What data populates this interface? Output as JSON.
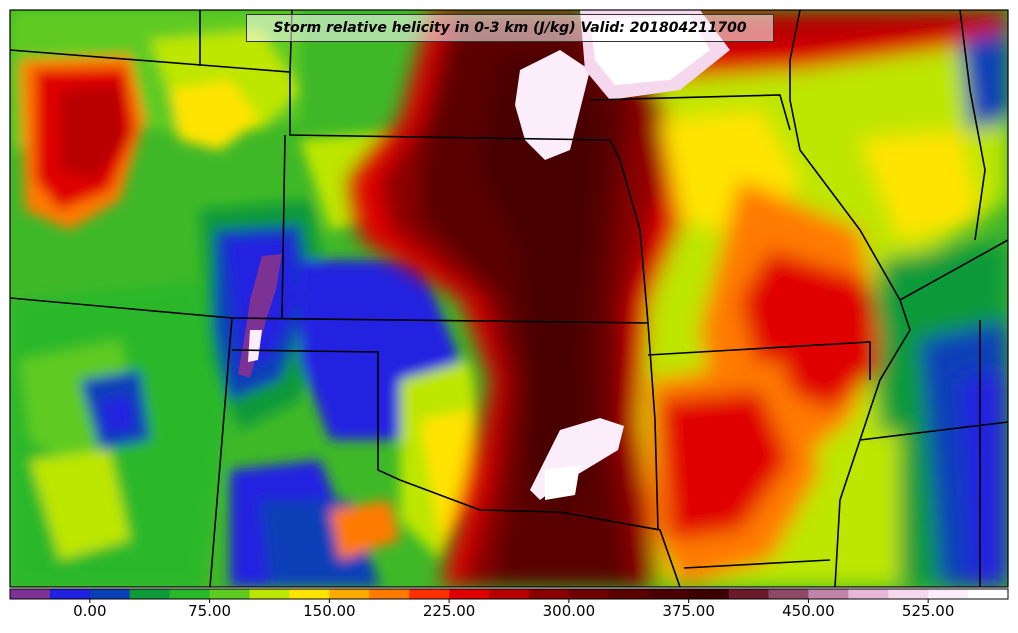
{
  "title": "Storm relative helicity in 0-3 km (J/kg) Valid: 201804211700",
  "colorbar": {
    "tick_labels": [
      "0.00",
      "75.00",
      "150.00",
      "225.00",
      "300.00",
      "375.00",
      "450.00",
      "525.00"
    ],
    "tick_values": [
      0,
      75,
      150,
      225,
      300,
      375,
      450,
      525
    ],
    "min": -50,
    "max": 575,
    "step": 25,
    "colors": [
      "#7b3294",
      "#2020e0",
      "#0a3fb8",
      "#0f9a3a",
      "#29b82a",
      "#5ecb20",
      "#bde600",
      "#ffe400",
      "#ffaa00",
      "#ff7a00",
      "#ff3000",
      "#e00000",
      "#b80000",
      "#8a0000",
      "#6e0000",
      "#5a0000",
      "#4a0000",
      "#3c0000",
      "#6b1a2a",
      "#8c4a66",
      "#c084a8",
      "#e6b8d8",
      "#f5d8ee",
      "#fbeefa",
      "#ffffff"
    ]
  },
  "map": {
    "regions": [
      {
        "name": "west-red-patch",
        "color": "#cc1a00"
      },
      {
        "name": "central-dark-red-band",
        "color": "#5a0000"
      },
      {
        "name": "purple-patch",
        "color": "#7b3294"
      },
      {
        "name": "blue-area",
        "color": "#2020e0"
      },
      {
        "name": "white-pink-high",
        "color": "#fbeefa"
      }
    ]
  }
}
